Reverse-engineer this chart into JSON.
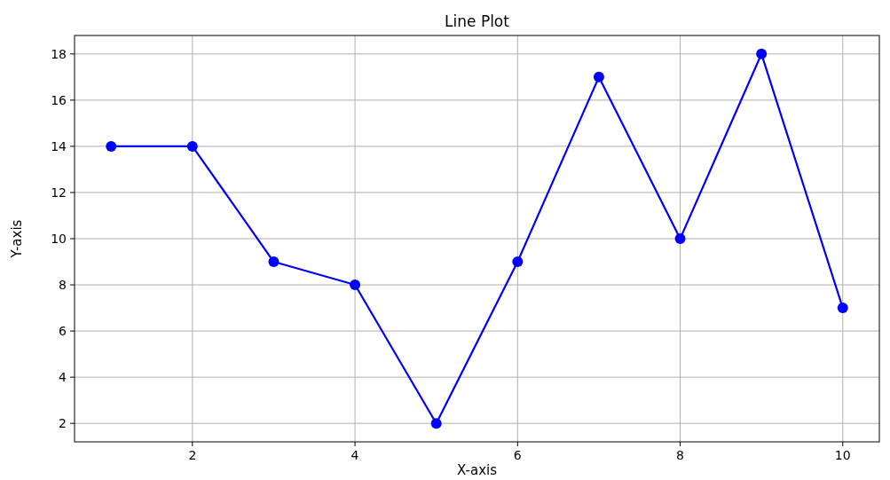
{
  "chart_data": {
    "type": "line",
    "title": "Line Plot",
    "xlabel": "X-axis",
    "ylabel": "Y-axis",
    "x": [
      1,
      2,
      3,
      4,
      5,
      6,
      7,
      8,
      9,
      10
    ],
    "series": [
      {
        "color": "#0000ff",
        "values": [
          14,
          14,
          9,
          8,
          2,
          9,
          17,
          10,
          18,
          7
        ]
      }
    ],
    "xlim": [
      0.55,
      10.45
    ],
    "xticks": [
      2,
      4,
      6,
      8,
      10
    ],
    "ylim": [
      1.2,
      18.8
    ],
    "yticks": [
      2,
      4,
      6,
      8,
      10,
      12,
      14,
      16,
      18
    ],
    "grid": true,
    "marker": "circle",
    "line_style": "solid"
  }
}
